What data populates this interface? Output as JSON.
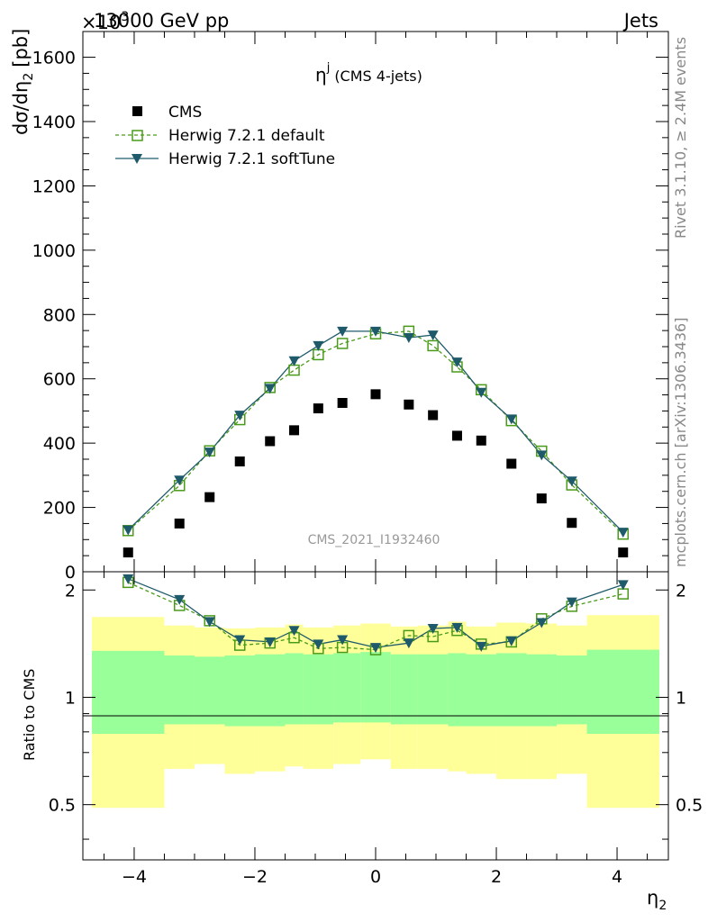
{
  "header": {
    "left": "13000 GeV pp",
    "right": "Jets",
    "exponent": "×10",
    "exponent_power": "3"
  },
  "side_labels": {
    "rivet": "Rivet 3.1.10, ≥ 2.4M events",
    "mcplots": "mcplots.cern.ch [arXiv:1306.3436]"
  },
  "chart_data": [
    {
      "type": "scatter",
      "title_main": "η",
      "title_sup": "j",
      "title_suffix": "(CMS 4-jets)",
      "watermark": "CMS_2021_I1932460",
      "ylabel": "dσ/dη",
      "ylabel_sub": "2",
      "ylabel_unit": "[pb]",
      "xlabel": "η",
      "xlabel_sub": "2",
      "xlim": [
        -4.85,
        4.85
      ],
      "ylim": [
        0,
        1680
      ],
      "y_unit_multiplier": 1000,
      "yticks": [
        0,
        200,
        400,
        600,
        800,
        1000,
        1200,
        1400,
        1600
      ],
      "yticks_labels": [
        "0",
        "200",
        "400",
        "600",
        "800",
        "1000",
        "1200",
        "1400",
        "1600"
      ],
      "legend_position": "top-left",
      "x": [
        -4.1,
        -3.25,
        -2.75,
        -2.25,
        -1.75,
        -1.35,
        -0.95,
        -0.55,
        0.0,
        0.55,
        0.95,
        1.35,
        1.75,
        2.25,
        2.75,
        3.25,
        4.1
      ],
      "series": [
        {
          "name": "CMS",
          "style": "data",
          "color": "#000000",
          "values": [
            60,
            150,
            232,
            343,
            406,
            440,
            508,
            525,
            552,
            520,
            487,
            423,
            408,
            336,
            228,
            152,
            60
          ]
        },
        {
          "name": "Herwig 7.2.1 default",
          "style": "open-square-dashed",
          "color": "#4a9a1a",
          "values": [
            128,
            268,
            376,
            473,
            573,
            627,
            675,
            710,
            740,
            748,
            703,
            637,
            566,
            470,
            375,
            270,
            117
          ]
        },
        {
          "name": "Herwig 7.2.1 softTune",
          "style": "triangle-solid",
          "color": "#1f5a6b",
          "values": [
            130,
            285,
            372,
            487,
            570,
            656,
            703,
            748,
            748,
            728,
            736,
            652,
            558,
            475,
            363,
            282,
            123
          ]
        }
      ]
    },
    {
      "type": "line",
      "ylabel": "Ratio to CMS",
      "ylim": [
        0.35,
        2.25
      ],
      "yticks": [
        0.5,
        1,
        2
      ],
      "yticks_labels": [
        "0.5",
        "1",
        "2"
      ],
      "xticks": [
        -4,
        -2,
        0,
        2,
        4
      ],
      "xticks_labels": [
        "−4",
        "−2",
        "0",
        "2",
        "4"
      ],
      "x": [
        -4.1,
        -3.25,
        -2.75,
        -2.25,
        -1.75,
        -1.35,
        -0.95,
        -0.55,
        0.0,
        0.55,
        0.95,
        1.35,
        1.75,
        2.25,
        2.75,
        3.25,
        4.1
      ],
      "bin_edges": [
        -4.7,
        -3.5,
        -3.0,
        -2.5,
        -2.0,
        -1.5,
        -1.2,
        -0.7,
        -0.25,
        0.25,
        0.7,
        1.2,
        1.5,
        2.0,
        2.5,
        3.0,
        3.5,
        4.7
      ],
      "band_yellow": {
        "color": "#ffff99",
        "lower": [
          0.49,
          0.63,
          0.65,
          0.61,
          0.62,
          0.64,
          0.63,
          0.65,
          0.67,
          0.63,
          0.63,
          0.62,
          0.61,
          0.59,
          0.59,
          0.61,
          0.49
        ],
        "upper": [
          1.68,
          1.59,
          1.57,
          1.56,
          1.57,
          1.6,
          1.57,
          1.59,
          1.61,
          1.58,
          1.59,
          1.63,
          1.58,
          1.62,
          1.61,
          1.59,
          1.7
        ]
      },
      "band_green": {
        "color": "#99ff99",
        "lower": [
          0.79,
          0.84,
          0.84,
          0.83,
          0.83,
          0.84,
          0.84,
          0.85,
          0.85,
          0.84,
          0.84,
          0.83,
          0.83,
          0.83,
          0.83,
          0.84,
          0.79
        ],
        "upper": [
          1.35,
          1.31,
          1.3,
          1.31,
          1.32,
          1.33,
          1.32,
          1.33,
          1.34,
          1.32,
          1.32,
          1.33,
          1.32,
          1.33,
          1.32,
          1.31,
          1.36
        ]
      },
      "series": [
        {
          "name": "Herwig 7.2.1 default",
          "color": "#4a9a1a",
          "values": [
            2.1,
            1.81,
            1.64,
            1.4,
            1.42,
            1.47,
            1.37,
            1.38,
            1.36,
            1.49,
            1.48,
            1.54,
            1.41,
            1.43,
            1.66,
            1.8,
            1.95
          ]
        },
        {
          "name": "Herwig 7.2.1 softTune",
          "color": "#1f5a6b",
          "values": [
            2.15,
            1.88,
            1.63,
            1.45,
            1.43,
            1.54,
            1.41,
            1.45,
            1.38,
            1.42,
            1.56,
            1.57,
            1.39,
            1.44,
            1.62,
            1.85,
            2.07
          ]
        }
      ]
    }
  ]
}
